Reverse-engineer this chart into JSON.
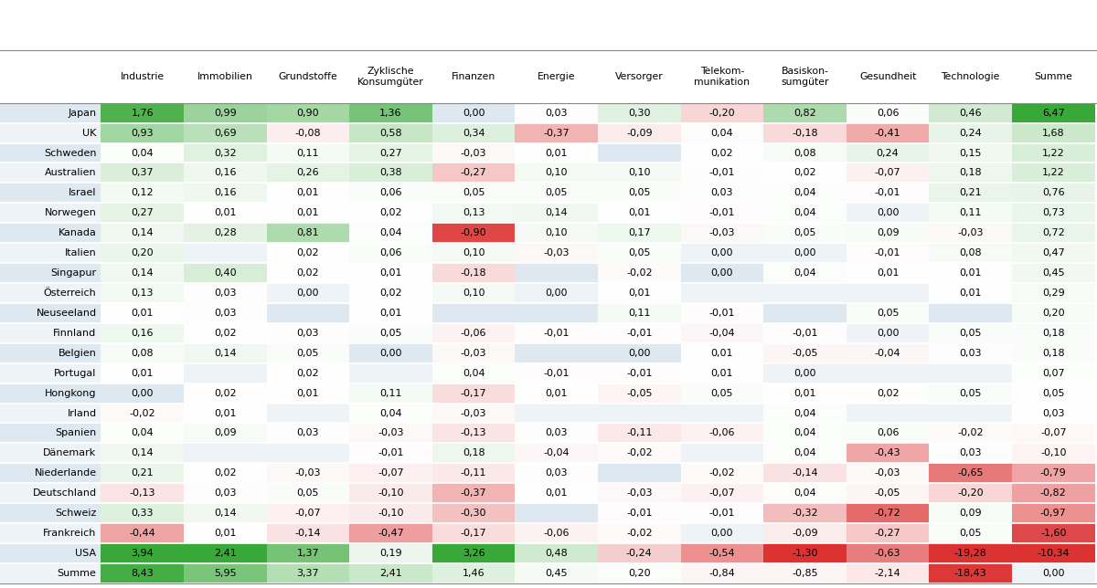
{
  "rows": [
    "Japan",
    "UK",
    "Schweden",
    "Australien",
    "Israel",
    "Norwegen",
    "Kanada",
    "Italien",
    "Singapur",
    "Österreich",
    "Neuseeland",
    "Finnland",
    "Belgien",
    "Portugal",
    "Hongkong",
    "Irland",
    "Spanien",
    "Dänemark",
    "Niederlande",
    "Deutschland",
    "Schweiz",
    "Frankreich",
    "USA",
    "Summe"
  ],
  "cols": [
    "Industrie",
    "Immobilien",
    "Grundstoffe",
    "Zyklische\nKonsumgüter",
    "Finanzen",
    "Energie",
    "Versorger",
    "Telekom-\nmunikation",
    "Basiskon-\nsumgüter",
    "Gesundheit",
    "Technologie",
    "Summe"
  ],
  "values": [
    [
      1.76,
      0.99,
      0.9,
      1.36,
      0.0,
      0.03,
      0.3,
      -0.2,
      0.82,
      0.06,
      0.46,
      6.47
    ],
    [
      0.93,
      0.69,
      -0.08,
      0.58,
      0.34,
      -0.37,
      -0.09,
      0.04,
      -0.18,
      -0.41,
      0.24,
      1.68
    ],
    [
      0.04,
      0.32,
      0.11,
      0.27,
      -0.03,
      0.01,
      null,
      0.02,
      0.08,
      0.24,
      0.15,
      1.22
    ],
    [
      0.37,
      0.16,
      0.26,
      0.38,
      -0.27,
      0.1,
      0.1,
      -0.01,
      0.02,
      -0.07,
      0.18,
      1.22
    ],
    [
      0.12,
      0.16,
      0.01,
      0.06,
      0.05,
      0.05,
      0.05,
      0.03,
      0.04,
      -0.01,
      0.21,
      0.76
    ],
    [
      0.27,
      0.01,
      0.01,
      0.02,
      0.13,
      0.14,
      0.01,
      -0.01,
      0.04,
      0.0,
      0.11,
      0.73
    ],
    [
      0.14,
      0.28,
      0.81,
      0.04,
      -0.9,
      0.1,
      0.17,
      -0.03,
      0.05,
      0.09,
      -0.03,
      0.72
    ],
    [
      0.2,
      null,
      0.02,
      0.06,
      0.1,
      -0.03,
      0.05,
      0.0,
      0.0,
      -0.01,
      0.08,
      0.47
    ],
    [
      0.14,
      0.4,
      0.02,
      0.01,
      -0.18,
      null,
      -0.02,
      0.0,
      0.04,
      0.01,
      0.01,
      0.45
    ],
    [
      0.13,
      0.03,
      0.0,
      0.02,
      0.1,
      0.0,
      0.01,
      null,
      null,
      null,
      0.01,
      0.29
    ],
    [
      0.01,
      0.03,
      null,
      0.01,
      null,
      null,
      0.11,
      -0.01,
      null,
      0.05,
      null,
      0.2
    ],
    [
      0.16,
      0.02,
      0.03,
      0.05,
      -0.06,
      -0.01,
      -0.01,
      -0.04,
      -0.01,
      0.0,
      0.05,
      0.18
    ],
    [
      0.08,
      0.14,
      0.05,
      0.0,
      -0.03,
      null,
      0.0,
      0.01,
      -0.05,
      -0.04,
      0.03,
      0.18
    ],
    [
      0.01,
      null,
      0.02,
      null,
      0.04,
      -0.01,
      -0.01,
      0.01,
      0.0,
      null,
      null,
      0.07
    ],
    [
      0.0,
      0.02,
      0.01,
      0.11,
      -0.17,
      0.01,
      -0.05,
      0.05,
      0.01,
      0.02,
      0.05,
      0.05
    ],
    [
      -0.02,
      0.01,
      null,
      0.04,
      -0.03,
      null,
      null,
      null,
      0.04,
      null,
      null,
      0.03
    ],
    [
      0.04,
      0.09,
      0.03,
      -0.03,
      -0.13,
      0.03,
      -0.11,
      -0.06,
      0.04,
      0.06,
      -0.02,
      -0.07
    ],
    [
      0.14,
      null,
      null,
      -0.01,
      0.18,
      -0.04,
      -0.02,
      null,
      0.04,
      -0.43,
      0.03,
      -0.1
    ],
    [
      0.21,
      0.02,
      -0.03,
      -0.07,
      -0.11,
      0.03,
      null,
      -0.02,
      -0.14,
      -0.03,
      -0.65,
      -0.79
    ],
    [
      -0.13,
      0.03,
      0.05,
      -0.1,
      -0.37,
      0.01,
      -0.03,
      -0.07,
      0.04,
      -0.05,
      -0.2,
      -0.82
    ],
    [
      0.33,
      0.14,
      -0.07,
      -0.1,
      -0.3,
      null,
      -0.01,
      -0.01,
      -0.32,
      -0.72,
      0.09,
      -0.97
    ],
    [
      -0.44,
      0.01,
      -0.14,
      -0.47,
      -0.17,
      -0.06,
      -0.02,
      0.0,
      -0.09,
      -0.27,
      0.05,
      -1.6
    ],
    [
      3.94,
      2.41,
      1.37,
      0.19,
      3.26,
      0.48,
      -0.24,
      -0.54,
      -1.3,
      -0.63,
      -19.28,
      -10.34
    ],
    [
      8.43,
      5.95,
      3.37,
      2.41,
      1.46,
      0.45,
      0.2,
      -0.84,
      -0.85,
      -2.14,
      -18.43,
      0.0
    ]
  ],
  "fontsize": 8.0,
  "header_fontsize": 7.8
}
